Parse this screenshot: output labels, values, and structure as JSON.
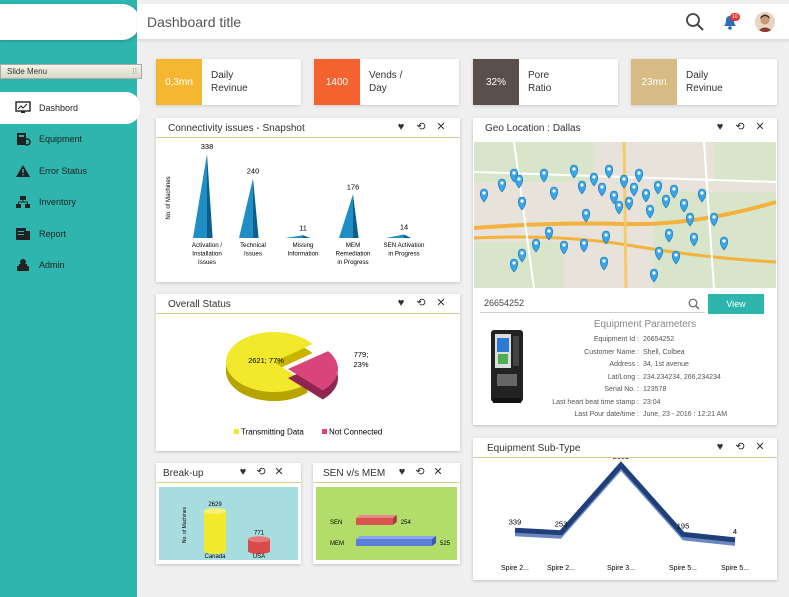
{
  "header": {
    "title": "Dashboard title",
    "notification_count": "10"
  },
  "sidebar": {
    "slide_menu": "Slide Menu",
    "items": [
      {
        "label": "Dashbord",
        "icon": "monitor-icon"
      },
      {
        "label": "Equipment",
        "icon": "equipment-icon"
      },
      {
        "label": "Error Status",
        "icon": "warning-icon"
      },
      {
        "label": "Inventory",
        "icon": "inventory-icon"
      },
      {
        "label": "Report",
        "icon": "report-icon"
      },
      {
        "label": "Admin",
        "icon": "admin-icon"
      }
    ]
  },
  "kpis": [
    {
      "value": "0,3mn",
      "label1": "Daily",
      "label2": "Revinue",
      "color": "#f5b731"
    },
    {
      "value": "1400",
      "label1": "Vends /",
      "label2": "Day",
      "color": "#f4632f"
    },
    {
      "value": "32%",
      "label1": "Pore",
      "label2": "Ratio",
      "color": "#5a4f4b"
    },
    {
      "value": "23mn",
      "label1": "Daily",
      "label2": "Revinue",
      "color": "#d7bb84"
    }
  ],
  "panels": {
    "connectivity": "Connectivity issues - Snapshot",
    "overall": "Overall Status",
    "breakup": "Break-up",
    "senmem": "SEN v/s MEM",
    "geo": "Geo Location : Dallas",
    "subtype": "Equipment Sub-Type"
  },
  "geo": {
    "search_value": "26654252",
    "view_label": "View",
    "params_title": "Equipment Parameters",
    "params": [
      {
        "k": "Equipment Id :",
        "v": "26654252"
      },
      {
        "k": "Customer Name :",
        "v": "Shell, Colbea"
      },
      {
        "k": "Address :",
        "v": "34, 1st avenue"
      },
      {
        "k": "Lat/Long :",
        "v": "234.234234, 266,234234"
      },
      {
        "k": "Serial No. :",
        "v": "123578"
      },
      {
        "k": "Last heart beat time stamp :",
        "v": "23:04"
      },
      {
        "k": "Last Pour date/time :",
        "v": "June, 23 - 2016 : 12:21 AM"
      }
    ]
  },
  "chart_data": [
    {
      "type": "bar",
      "title": "Connectivity issues - Snapshot",
      "ylabel": "No. of Machines",
      "categories": [
        "Activation / Installation Issues",
        "Technical Issues",
        "Missing Information",
        "MEM Remediation in Progress",
        "SEN Activation in Progress"
      ],
      "cat_lines": [
        [
          "Activation /",
          "Installation",
          "Issues"
        ],
        [
          "Technical",
          "Issues"
        ],
        [
          "Missing",
          "Information"
        ],
        [
          "MEM",
          "Remediation",
          "in Progress"
        ],
        [
          "SEN Activation",
          "in Progress"
        ]
      ],
      "values": [
        338,
        240,
        11,
        176,
        14
      ],
      "color": "#1f9ed6"
    },
    {
      "type": "pie",
      "title": "Overall Status",
      "slices": [
        {
          "name": "Transmitting Data",
          "value": 2621,
          "label": "2621; 77%",
          "color": "#f2e82c"
        },
        {
          "name": "Not Connected",
          "value": 779,
          "label": "779; 23%",
          "color": "#d9457a"
        }
      ]
    },
    {
      "type": "bar",
      "title": "Break-up",
      "ylabel": "No. of Machines",
      "categories": [
        "Canada",
        "USA"
      ],
      "values": [
        2629,
        771
      ],
      "colors": [
        "#f2e82c",
        "#d94a4a"
      ]
    },
    {
      "type": "bar",
      "title": "SEN v/s MEM",
      "orientation": "horizontal",
      "categories": [
        "SEN",
        "MEM"
      ],
      "values": [
        254,
        525
      ],
      "colors": [
        "#d9534f",
        "#5b7fd6"
      ]
    },
    {
      "type": "line",
      "title": "Equipment Sub-Type",
      "categories": [
        "Spire 2...",
        "Spire 2...",
        "Spire 3...",
        "Spire 5...",
        "Spire 5..."
      ],
      "values": [
        339,
        253,
        2609,
        195,
        4
      ],
      "color": "#1f3f7a"
    }
  ]
}
